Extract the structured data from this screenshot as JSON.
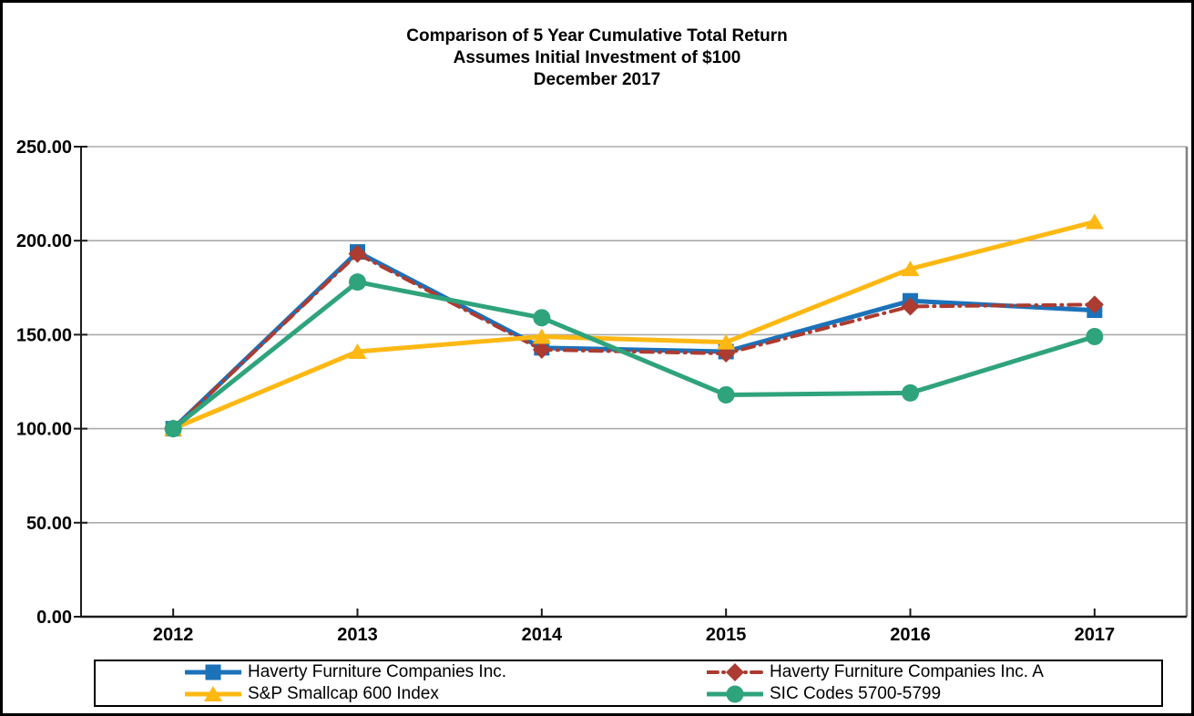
{
  "chart_data": {
    "type": "line",
    "title": "Comparison of 5 Year Cumulative Total Return",
    "subtitle": "Assumes Initial Investment of $100",
    "subtitle2": "December 2017",
    "categories": [
      "2012",
      "2013",
      "2014",
      "2015",
      "2016",
      "2017"
    ],
    "series": [
      {
        "name": "Haverty Furniture Companies Inc.",
        "color": "#1B72B9",
        "marker": "square",
        "line_style": "solid",
        "line_width": 5,
        "values": [
          100,
          194,
          143,
          141,
          168,
          163
        ]
      },
      {
        "name": "Haverty Furniture Companies Inc. A",
        "color": "#AC3B31",
        "marker": "diamond",
        "line_style": "dash-dot",
        "line_width": 4,
        "values": [
          100,
          193,
          142,
          140,
          165,
          166
        ]
      },
      {
        "name": "S&P Smallcap 600 Index",
        "color": "#FDB813",
        "marker": "triangle",
        "line_style": "solid",
        "line_width": 5,
        "values": [
          100,
          141,
          149,
          146,
          185,
          210
        ]
      },
      {
        "name": "SIC Codes 5700-5799",
        "color": "#2FA37C",
        "marker": "circle",
        "line_style": "solid",
        "line_width": 5,
        "values": [
          100,
          178,
          159,
          118,
          119,
          149
        ]
      }
    ],
    "ylim": [
      0,
      250
    ],
    "ytick_step": 50,
    "ytick_labels": [
      "0.00",
      "50.00",
      "100.00",
      "150.00",
      "200.00",
      "250.00"
    ],
    "xlabel": "",
    "ylabel": "",
    "grid": true,
    "legend_position": "bottom",
    "colors": {
      "gridline": "#ABABAB",
      "axis": "#1A1A1A",
      "plot_right_border": "#7F7F7F",
      "text": "#000000"
    }
  }
}
